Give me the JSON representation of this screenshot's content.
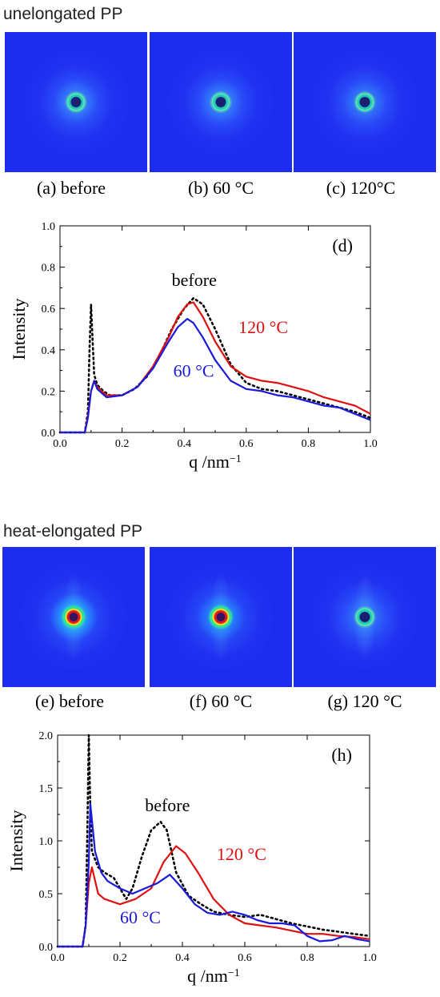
{
  "sections": [
    {
      "title": "unelongated PP",
      "panels": [
        {
          "caption": "(a) before",
          "ring": "strong",
          "halo": 0.55,
          "streak": false
        },
        {
          "caption": "(b) 60 °C",
          "ring": "strong",
          "halo": 0.55,
          "streak": false
        },
        {
          "caption": "(c) 120°C",
          "ring": "strong",
          "halo": 0.5,
          "streak": false
        }
      ]
    },
    {
      "title": "heat-elongated PP",
      "panels": [
        {
          "caption": "(e) before",
          "ring": "red",
          "halo": 0.75,
          "streak": true
        },
        {
          "caption": "(f) 60 °C",
          "ring": "red",
          "halo": 0.55,
          "streak": true
        },
        {
          "caption": "(g) 120 °C",
          "ring": "strong",
          "halo": 0.45,
          "streak": true
        }
      ]
    }
  ],
  "colors": {
    "background": "#1e2cf0",
    "before": "#000000",
    "t60": "#1a1adb",
    "t120": "#e01010"
  },
  "chart_data": [
    {
      "type": "line",
      "panel_label": "(d)",
      "xlabel": "q /nm",
      "xlabel_sup": "−1",
      "ylabel": "Intensity",
      "xlim": [
        0.0,
        1.0
      ],
      "ylim": [
        0.0,
        1.0
      ],
      "xticks": [
        "0.0",
        "0.2",
        "0.4",
        "0.6",
        "0.8",
        "1.0"
      ],
      "yticks": [
        "0.0",
        "0.2",
        "0.4",
        "0.6",
        "0.8",
        "1.0"
      ],
      "series": [
        {
          "name": "before",
          "style": "dotted",
          "color": "#000000",
          "points": [
            [
              0.0,
              0.0
            ],
            [
              0.08,
              0.0
            ],
            [
              0.09,
              0.1
            ],
            [
              0.095,
              0.4
            ],
            [
              0.1,
              0.62
            ],
            [
              0.105,
              0.45
            ],
            [
              0.11,
              0.28
            ],
            [
              0.12,
              0.23
            ],
            [
              0.14,
              0.2
            ],
            [
              0.16,
              0.18
            ],
            [
              0.2,
              0.18
            ],
            [
              0.24,
              0.21
            ],
            [
              0.28,
              0.27
            ],
            [
              0.32,
              0.37
            ],
            [
              0.36,
              0.5
            ],
            [
              0.4,
              0.6
            ],
            [
              0.43,
              0.65
            ],
            [
              0.46,
              0.62
            ],
            [
              0.5,
              0.5
            ],
            [
              0.55,
              0.33
            ],
            [
              0.6,
              0.24
            ],
            [
              0.65,
              0.21
            ],
            [
              0.7,
              0.2
            ],
            [
              0.75,
              0.18
            ],
            [
              0.8,
              0.16
            ],
            [
              0.85,
              0.14
            ],
            [
              0.9,
              0.12
            ],
            [
              0.95,
              0.1
            ],
            [
              1.0,
              0.07
            ]
          ],
          "label": "before",
          "label_at": [
            0.36,
            0.71
          ]
        },
        {
          "name": "120 °C",
          "style": "solid",
          "color": "#e01010",
          "points": [
            [
              0.0,
              0.0
            ],
            [
              0.08,
              0.0
            ],
            [
              0.09,
              0.08
            ],
            [
              0.1,
              0.2
            ],
            [
              0.11,
              0.25
            ],
            [
              0.12,
              0.22
            ],
            [
              0.15,
              0.18
            ],
            [
              0.2,
              0.18
            ],
            [
              0.25,
              0.22
            ],
            [
              0.3,
              0.32
            ],
            [
              0.35,
              0.46
            ],
            [
              0.38,
              0.56
            ],
            [
              0.41,
              0.62
            ],
            [
              0.43,
              0.63
            ],
            [
              0.46,
              0.56
            ],
            [
              0.5,
              0.44
            ],
            [
              0.55,
              0.32
            ],
            [
              0.6,
              0.27
            ],
            [
              0.65,
              0.25
            ],
            [
              0.7,
              0.24
            ],
            [
              0.75,
              0.22
            ],
            [
              0.8,
              0.2
            ],
            [
              0.85,
              0.17
            ],
            [
              0.9,
              0.15
            ],
            [
              0.95,
              0.13
            ],
            [
              1.0,
              0.09
            ]
          ],
          "label": "120 °C",
          "label_at": [
            0.575,
            0.48
          ]
        },
        {
          "name": "60 °C",
          "style": "solid",
          "color": "#1a1adb",
          "points": [
            [
              0.0,
              0.0
            ],
            [
              0.08,
              0.0
            ],
            [
              0.09,
              0.07
            ],
            [
              0.1,
              0.2
            ],
            [
              0.11,
              0.25
            ],
            [
              0.12,
              0.21
            ],
            [
              0.15,
              0.17
            ],
            [
              0.2,
              0.18
            ],
            [
              0.25,
              0.22
            ],
            [
              0.3,
              0.31
            ],
            [
              0.35,
              0.44
            ],
            [
              0.38,
              0.51
            ],
            [
              0.41,
              0.55
            ],
            [
              0.43,
              0.53
            ],
            [
              0.46,
              0.46
            ],
            [
              0.5,
              0.35
            ],
            [
              0.55,
              0.25
            ],
            [
              0.6,
              0.21
            ],
            [
              0.65,
              0.2
            ],
            [
              0.7,
              0.18
            ],
            [
              0.75,
              0.17
            ],
            [
              0.8,
              0.15
            ],
            [
              0.85,
              0.13
            ],
            [
              0.9,
              0.12
            ],
            [
              0.95,
              0.09
            ],
            [
              1.0,
              0.06
            ]
          ],
          "label": "60 °C",
          "label_at": [
            0.365,
            0.27
          ]
        }
      ]
    },
    {
      "type": "line",
      "panel_label": "(h)",
      "xlabel": "q /nm",
      "xlabel_sup": "−1",
      "ylabel": "Intensity",
      "xlim": [
        0.0,
        1.0
      ],
      "ylim": [
        0.0,
        2.0
      ],
      "xticks": [
        "0.0",
        "0.2",
        "0.4",
        "0.6",
        "0.8",
        "1.0"
      ],
      "yticks": [
        "0.0",
        "0.5",
        "1.0",
        "1.5",
        "2.0"
      ],
      "series": [
        {
          "name": "before",
          "style": "dotted",
          "color": "#000000",
          "points": [
            [
              0.0,
              0.0
            ],
            [
              0.08,
              0.0
            ],
            [
              0.09,
              0.2
            ],
            [
              0.095,
              1.0
            ],
            [
              0.1,
              2.0
            ],
            [
              0.105,
              1.3
            ],
            [
              0.11,
              0.9
            ],
            [
              0.13,
              0.75
            ],
            [
              0.15,
              0.7
            ],
            [
              0.18,
              0.65
            ],
            [
              0.22,
              0.45
            ],
            [
              0.24,
              0.55
            ],
            [
              0.27,
              0.85
            ],
            [
              0.3,
              1.1
            ],
            [
              0.33,
              1.18
            ],
            [
              0.35,
              1.1
            ],
            [
              0.38,
              0.7
            ],
            [
              0.42,
              0.48
            ],
            [
              0.46,
              0.4
            ],
            [
              0.5,
              0.33
            ],
            [
              0.55,
              0.3
            ],
            [
              0.6,
              0.28
            ],
            [
              0.65,
              0.3
            ],
            [
              0.7,
              0.26
            ],
            [
              0.75,
              0.22
            ],
            [
              0.8,
              0.19
            ],
            [
              0.85,
              0.16
            ],
            [
              0.9,
              0.14
            ],
            [
              0.95,
              0.12
            ],
            [
              1.0,
              0.1
            ]
          ],
          "label": "before",
          "label_at": [
            0.28,
            1.28
          ]
        },
        {
          "name": "120 °C",
          "style": "solid",
          "color": "#e01010",
          "points": [
            [
              0.0,
              0.0
            ],
            [
              0.08,
              0.0
            ],
            [
              0.09,
              0.2
            ],
            [
              0.1,
              0.6
            ],
            [
              0.11,
              0.75
            ],
            [
              0.13,
              0.5
            ],
            [
              0.15,
              0.45
            ],
            [
              0.2,
              0.4
            ],
            [
              0.25,
              0.45
            ],
            [
              0.3,
              0.55
            ],
            [
              0.34,
              0.8
            ],
            [
              0.38,
              0.95
            ],
            [
              0.41,
              0.88
            ],
            [
              0.45,
              0.7
            ],
            [
              0.5,
              0.45
            ],
            [
              0.55,
              0.3
            ],
            [
              0.6,
              0.22
            ],
            [
              0.65,
              0.2
            ],
            [
              0.7,
              0.18
            ],
            [
              0.75,
              0.15
            ],
            [
              0.8,
              0.12
            ],
            [
              0.85,
              0.12
            ],
            [
              0.9,
              0.1
            ],
            [
              0.95,
              0.09
            ],
            [
              1.0,
              0.07
            ]
          ],
          "label": "120 °C",
          "label_at": [
            0.51,
            0.82
          ]
        },
        {
          "name": "60 °C",
          "style": "solid",
          "color": "#1a1adb",
          "points": [
            [
              0.0,
              0.0
            ],
            [
              0.08,
              0.0
            ],
            [
              0.09,
              0.2
            ],
            [
              0.1,
              0.8
            ],
            [
              0.105,
              1.35
            ],
            [
              0.11,
              1.2
            ],
            [
              0.12,
              0.9
            ],
            [
              0.14,
              0.7
            ],
            [
              0.16,
              0.62
            ],
            [
              0.2,
              0.55
            ],
            [
              0.24,
              0.5
            ],
            [
              0.28,
              0.55
            ],
            [
              0.32,
              0.6
            ],
            [
              0.36,
              0.68
            ],
            [
              0.4,
              0.55
            ],
            [
              0.44,
              0.4
            ],
            [
              0.48,
              0.32
            ],
            [
              0.52,
              0.3
            ],
            [
              0.56,
              0.33
            ],
            [
              0.6,
              0.3
            ],
            [
              0.64,
              0.25
            ],
            [
              0.68,
              0.22
            ],
            [
              0.72,
              0.22
            ],
            [
              0.76,
              0.2
            ],
            [
              0.8,
              0.1
            ],
            [
              0.84,
              0.05
            ],
            [
              0.88,
              0.06
            ],
            [
              0.92,
              0.1
            ],
            [
              0.96,
              0.07
            ],
            [
              1.0,
              0.05
            ]
          ],
          "label": "60 °C",
          "label_at": [
            0.2,
            0.22
          ]
        }
      ]
    }
  ]
}
